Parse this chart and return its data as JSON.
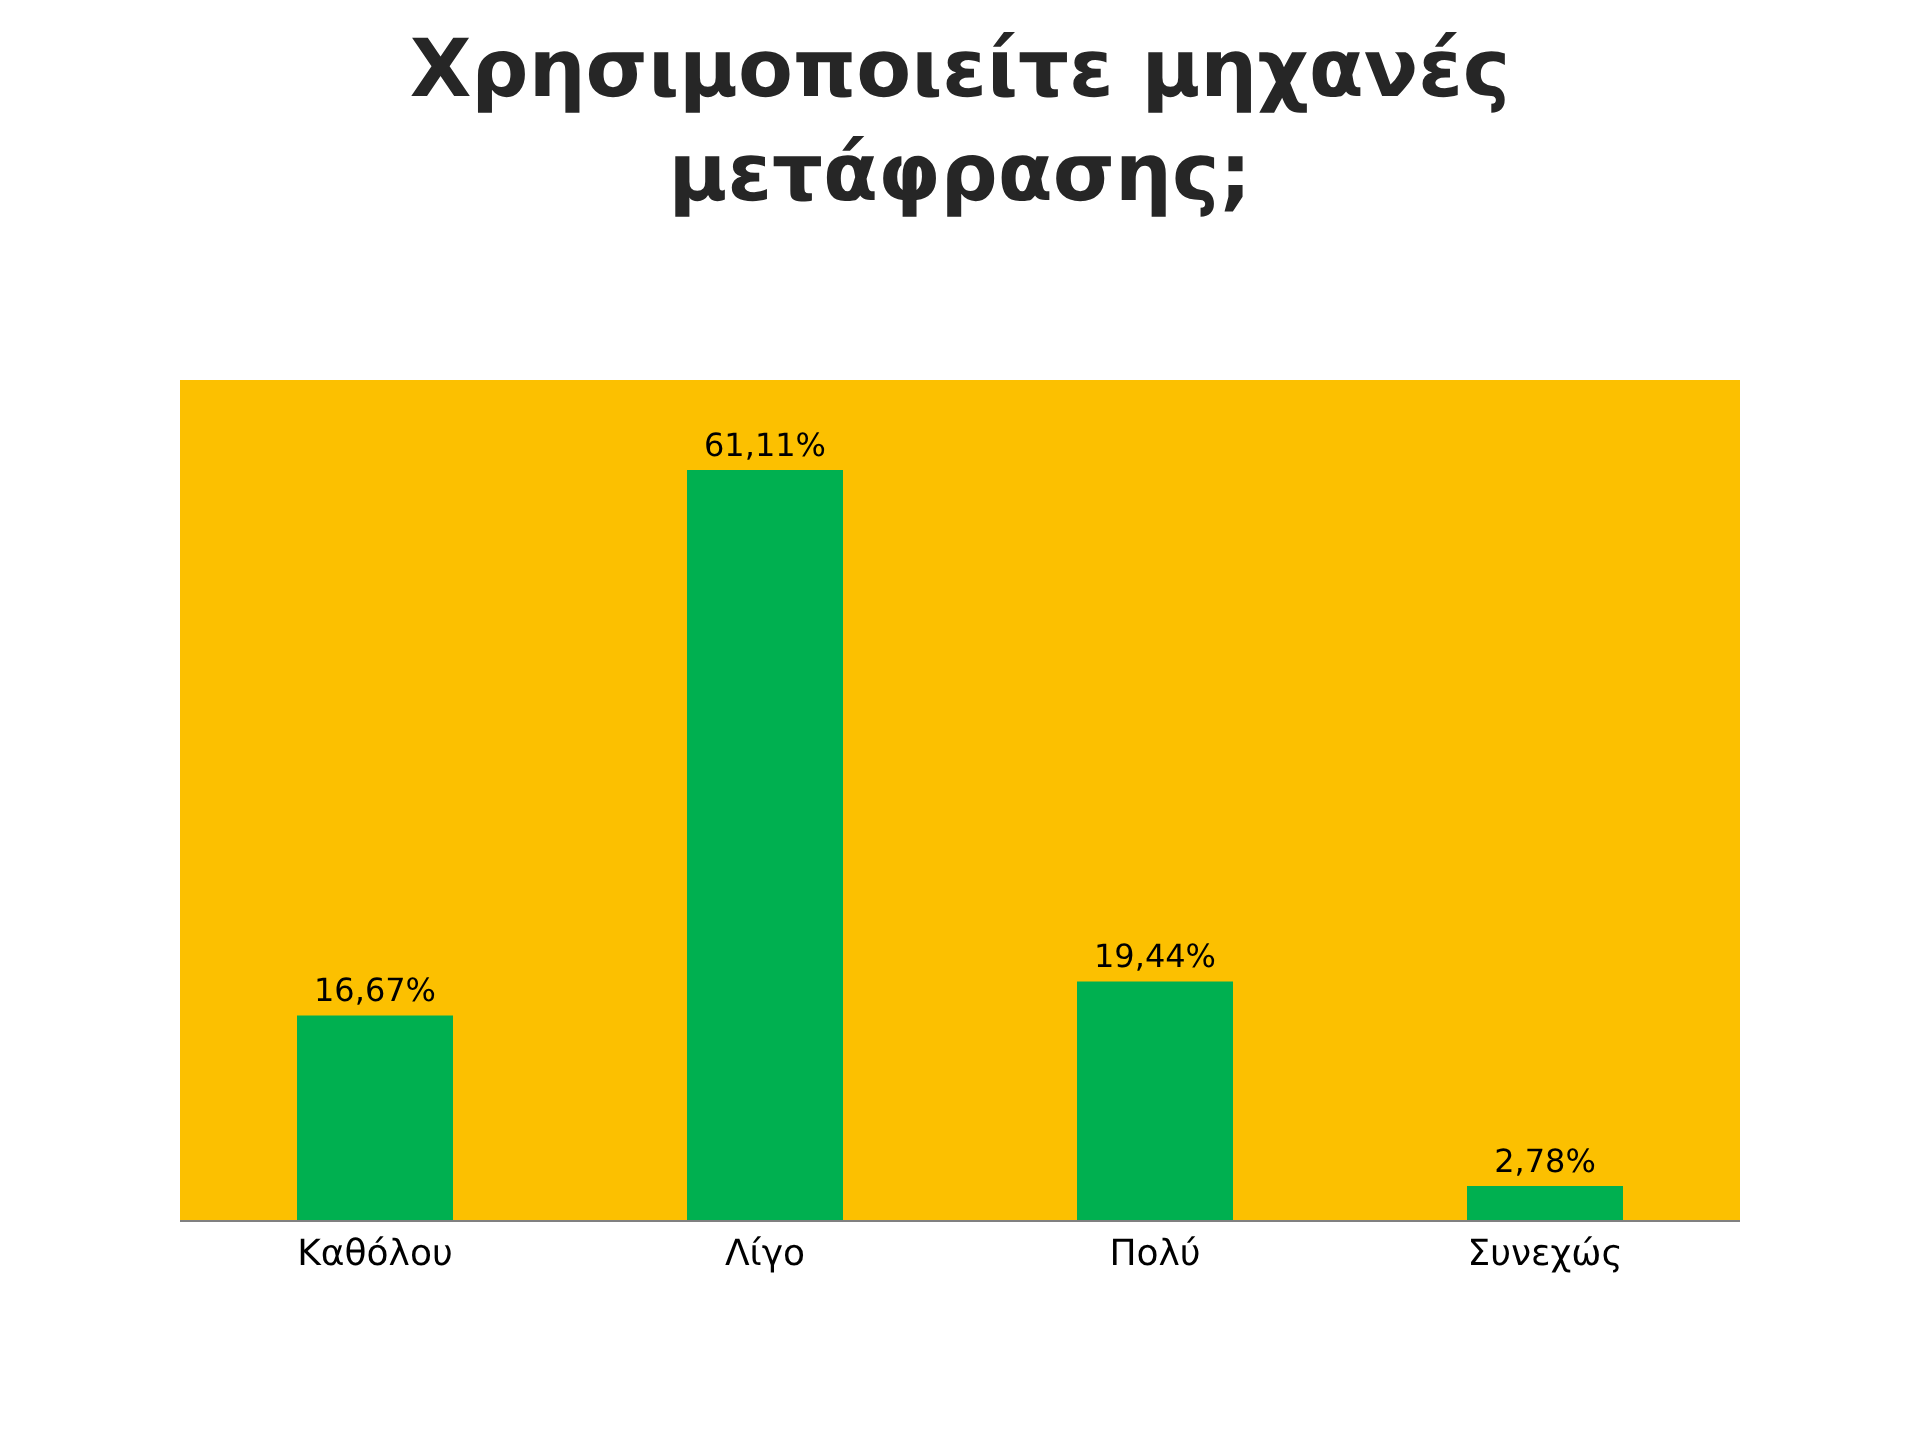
{
  "chart_data": {
    "type": "bar",
    "title": "Χρησιμοποιείτε μηχανές\nμετάφρασης;",
    "categories": [
      "Καθόλου",
      "Λίγο",
      "Πολύ",
      "Συνεχώς"
    ],
    "values": [
      16.67,
      61.11,
      19.44,
      2.78
    ],
    "value_labels": [
      "16,67%",
      "61,11%",
      "19,44%",
      "2,78%"
    ],
    "color": "#00b050",
    "grid": false
  }
}
